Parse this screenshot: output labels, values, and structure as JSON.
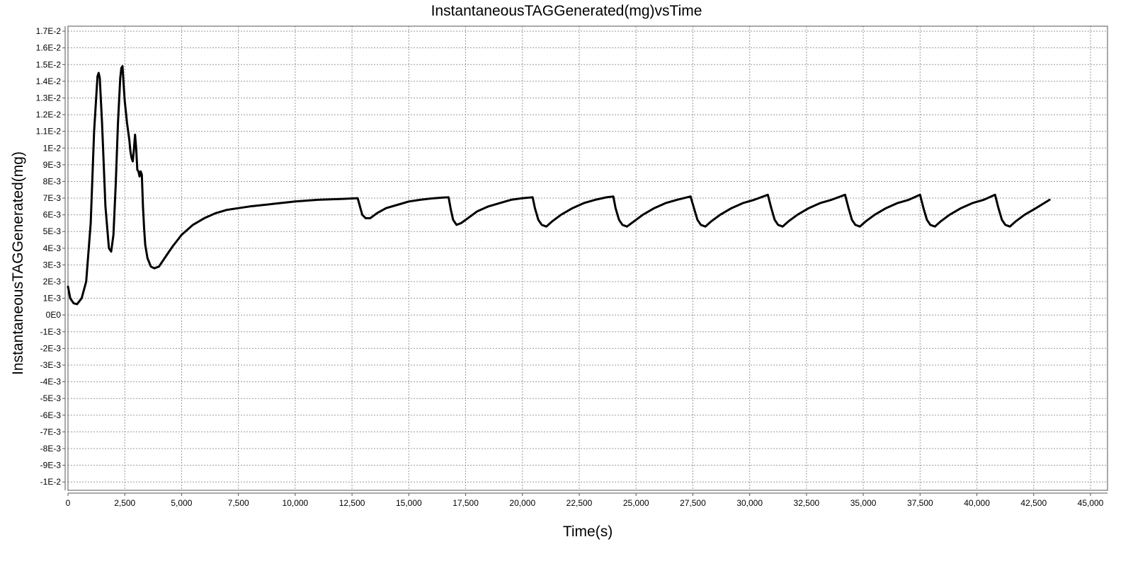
{
  "chart_data": {
    "type": "line",
    "title": "InstantaneousTAGGenerated(mg)vsTime",
    "xlabel": "Time(s)",
    "ylabel": "InstantaneousTAGGenerated(mg)",
    "xlim": [
      0,
      45000
    ],
    "ylim": [
      -0.0105,
      0.0173
    ],
    "grid": true,
    "x_ticks": [
      0,
      2500,
      5000,
      7500,
      10000,
      12500,
      15000,
      17500,
      20000,
      22500,
      25000,
      27500,
      30000,
      32500,
      35000,
      37500,
      40000,
      42500,
      45000
    ],
    "x_tick_labels": [
      "0",
      "2,500",
      "5,000",
      "7,500",
      "10,000",
      "12,500",
      "15,000",
      "17,500",
      "20,000",
      "22,500",
      "25,000",
      "27,500",
      "30,000",
      "32,500",
      "35,000",
      "37,500",
      "40,000",
      "42,500",
      "45,000"
    ],
    "y_ticks": [
      0.017,
      0.016,
      0.015,
      0.014,
      0.013,
      0.012,
      0.011,
      0.01,
      0.009,
      0.008,
      0.007,
      0.006,
      0.005,
      0.004,
      0.003,
      0.002,
      0.001,
      0,
      -0.001,
      -0.002,
      -0.003,
      -0.004,
      -0.005,
      -0.006,
      -0.007,
      -0.008,
      -0.009,
      -0.01
    ],
    "y_tick_labels": [
      "1.7E-2",
      "1.6E-2",
      "1.5E-2",
      "1.4E-2",
      "1.3E-2",
      "1.2E-2",
      "1.1E-2",
      "1E-2",
      "9E-3",
      "8E-3",
      "7E-3",
      "6E-3",
      "5E-3",
      "4E-3",
      "3E-3",
      "2E-3",
      "1E-3",
      "0E0",
      "-1E-3",
      "-2E-3",
      "-3E-3",
      "-4E-3",
      "-5E-3",
      "-6E-3",
      "-7E-3",
      "-8E-3",
      "-9E-3",
      "-1E-2"
    ],
    "line_color": "#000000",
    "series": [
      {
        "x": [
          0,
          100,
          250,
          400,
          600,
          800,
          1000,
          1150,
          1300,
          1350,
          1400,
          1500,
          1650,
          1800,
          1900,
          2000,
          2100,
          2200,
          2300,
          2350,
          2400,
          2450,
          2500,
          2600,
          2700,
          2750,
          2800,
          2850,
          2900,
          2950,
          3000,
          3050,
          3100,
          3150,
          3200,
          3250,
          3300,
          3350,
          3400,
          3500,
          3650,
          3800,
          4000,
          4300,
          4600,
          5000,
          5500,
          6000,
          6500,
          7000,
          7500,
          8000,
          9000,
          10000,
          11000,
          12000,
          12750,
          12850,
          12950,
          13100,
          13300,
          13600,
          14000,
          14500,
          15000,
          15500,
          16000,
          16500,
          16750,
          16850,
          16950,
          17100,
          17300,
          17600,
          18000,
          18500,
          19000,
          19500,
          20000,
          20450,
          20550,
          20700,
          20850,
          21050,
          21300,
          21700,
          22200,
          22700,
          23200,
          23700,
          24000,
          24100,
          24250,
          24400,
          24600,
          24900,
          25300,
          25800,
          26300,
          26800,
          27400,
          27550,
          27700,
          27850,
          28050,
          28300,
          28700,
          29200,
          29700,
          30200,
          30800,
          30950,
          31100,
          31250,
          31450,
          31700,
          32100,
          32600,
          33100,
          33600,
          34200,
          34350,
          34500,
          34650,
          34850,
          35100,
          35500,
          36000,
          36500,
          37000,
          37500,
          37650,
          37800,
          37950,
          38150,
          38400,
          38800,
          39300,
          39800,
          40300,
          40800,
          40950,
          41100,
          41250,
          41450,
          41700,
          42100,
          42600,
          43200
        ],
        "y": [
          0.0017,
          0.001,
          0.0007,
          0.00065,
          0.001,
          0.002,
          0.0055,
          0.011,
          0.0143,
          0.0145,
          0.0142,
          0.0115,
          0.0065,
          0.004,
          0.0038,
          0.0048,
          0.0078,
          0.0115,
          0.0142,
          0.0148,
          0.0149,
          0.0138,
          0.0128,
          0.0115,
          0.0105,
          0.0098,
          0.0094,
          0.0092,
          0.0099,
          0.0108,
          0.01,
          0.0087,
          0.0086,
          0.0083,
          0.0086,
          0.0084,
          0.0065,
          0.0052,
          0.0042,
          0.0034,
          0.0029,
          0.0028,
          0.0029,
          0.0035,
          0.0041,
          0.0048,
          0.0054,
          0.0058,
          0.0061,
          0.0063,
          0.0064,
          0.0065,
          0.00665,
          0.0068,
          0.0069,
          0.00695,
          0.007,
          0.0065,
          0.006,
          0.0058,
          0.0058,
          0.0061,
          0.0064,
          0.0066,
          0.0068,
          0.0069,
          0.00698,
          0.00703,
          0.00705,
          0.0063,
          0.0057,
          0.0054,
          0.0055,
          0.0058,
          0.0062,
          0.0065,
          0.0067,
          0.0069,
          0.007,
          0.00705,
          0.0064,
          0.0057,
          0.0054,
          0.0053,
          0.0056,
          0.006,
          0.0064,
          0.0067,
          0.0069,
          0.00705,
          0.0071,
          0.0064,
          0.0057,
          0.0054,
          0.0053,
          0.0056,
          0.006,
          0.0064,
          0.0067,
          0.0069,
          0.0071,
          0.0064,
          0.0057,
          0.0054,
          0.0053,
          0.0056,
          0.006,
          0.0064,
          0.0067,
          0.0069,
          0.0072,
          0.0064,
          0.0057,
          0.0054,
          0.0053,
          0.0056,
          0.006,
          0.0064,
          0.0067,
          0.0069,
          0.0072,
          0.0064,
          0.0057,
          0.0054,
          0.0053,
          0.0056,
          0.006,
          0.0064,
          0.0067,
          0.0069,
          0.0072,
          0.0064,
          0.0057,
          0.0054,
          0.0053,
          0.0056,
          0.006,
          0.0064,
          0.0067,
          0.0069,
          0.0072,
          0.0064,
          0.0057,
          0.0054,
          0.0053,
          0.0056,
          0.006,
          0.0064,
          0.0069
        ]
      }
    ]
  }
}
